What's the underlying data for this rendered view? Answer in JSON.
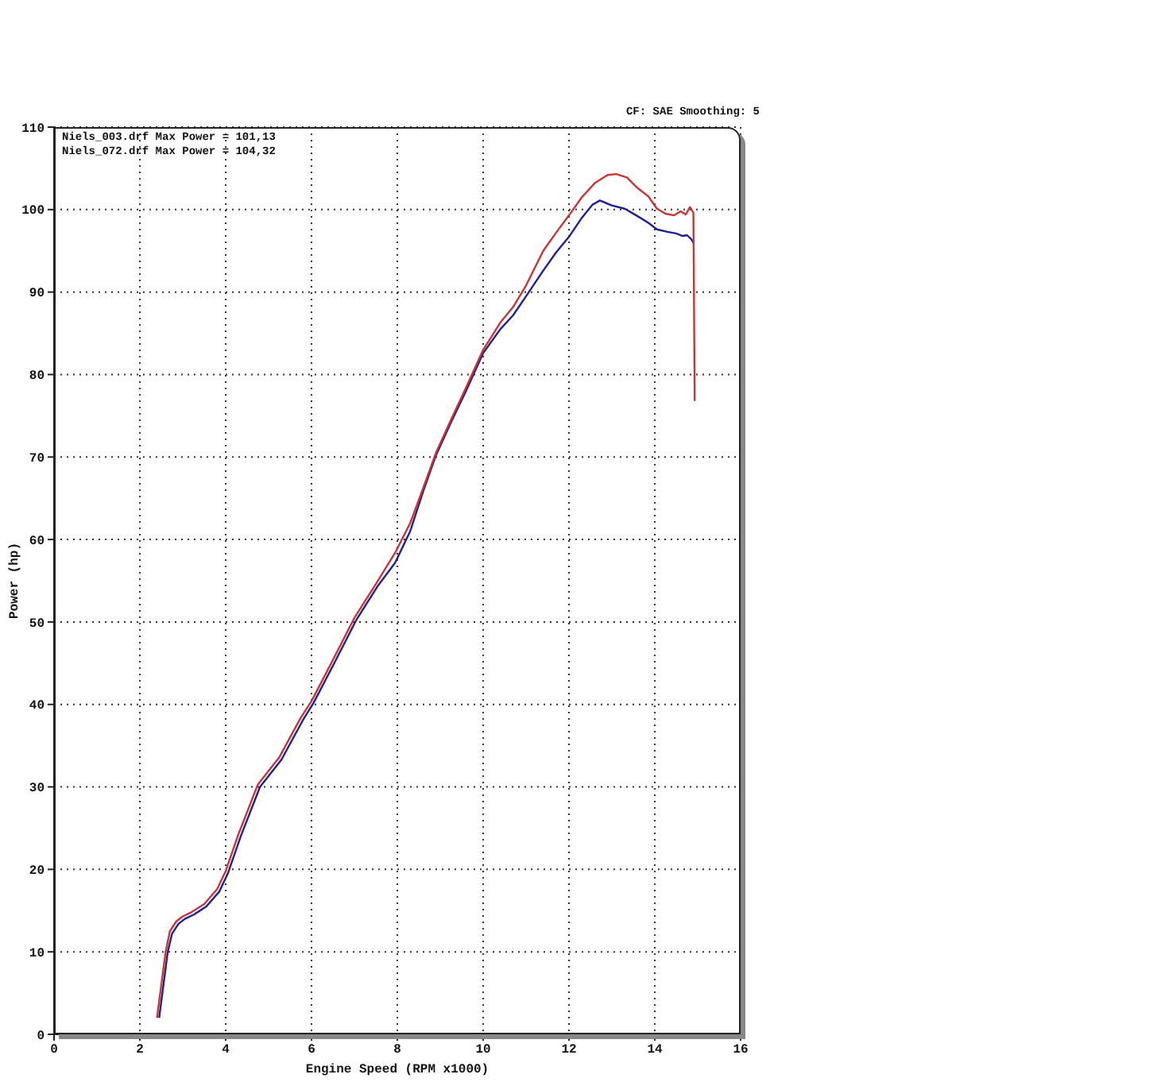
{
  "chart_data": {
    "type": "line",
    "xlabel": "Engine Speed (RPM x1000)",
    "ylabel": "Power (hp)",
    "annotations": [
      "Niels_003.drf Max Power = 101,13",
      "Niels_072.drf Max Power = 104,32",
      "CF: SAE Smoothing: 5"
    ],
    "xlim": [
      0,
      16
    ],
    "xticks": [
      0,
      2,
      4,
      6,
      8,
      10,
      12,
      14,
      16
    ],
    "ylim": [
      0,
      110
    ],
    "yticks": [
      0,
      10,
      20,
      30,
      40,
      50,
      60,
      70,
      80,
      90,
      100,
      110
    ],
    "grid": true,
    "series": [
      {
        "color": "#1f1f99",
        "x": [
          2.45,
          2.55,
          2.65,
          2.75,
          2.9,
          3.05,
          3.25,
          3.55,
          3.85,
          4.05,
          4.35,
          4.8,
          5.3,
          5.8,
          6.05,
          6.55,
          7.05,
          7.55,
          7.95,
          8.3,
          8.6,
          8.9,
          9.25,
          9.6,
          10.0,
          10.4,
          10.7,
          11.0,
          11.4,
          11.7,
          12.0,
          12.3,
          12.55,
          12.72,
          13.0,
          13.3,
          13.6,
          13.85,
          14.05,
          14.3,
          14.5,
          14.65,
          14.75,
          14.85,
          14.91
        ],
        "values": [
          2,
          6,
          10,
          12.2,
          13.4,
          14.0,
          14.5,
          15.5,
          17.3,
          19.5,
          24,
          30,
          33.3,
          38.1,
          40.2,
          45.2,
          50.3,
          54.4,
          57.2,
          61,
          65.8,
          70.2,
          74.2,
          78,
          82.6,
          85.5,
          87.2,
          89.5,
          92.6,
          94.8,
          96.7,
          99,
          100.6,
          101.1,
          100.5,
          100.1,
          99.2,
          98.4,
          97.6,
          97.3,
          97.1,
          96.8,
          96.9,
          96.4,
          95.9
        ]
      },
      {
        "color": "#cc3333",
        "x": [
          2.4,
          2.5,
          2.6,
          2.7,
          2.85,
          3.0,
          3.2,
          3.5,
          3.8,
          4.0,
          4.3,
          4.75,
          5.25,
          5.75,
          6.0,
          6.5,
          7.0,
          7.5,
          7.95,
          8.3,
          8.6,
          8.9,
          9.25,
          9.6,
          10.0,
          10.4,
          10.7,
          11.0,
          11.4,
          11.7,
          12.0,
          12.3,
          12.6,
          12.9,
          13.1,
          13.35,
          13.6,
          13.85,
          14.05,
          14.25,
          14.45,
          14.6,
          14.72,
          14.82,
          14.9,
          14.93
        ],
        "values": [
          2,
          6,
          10,
          12.5,
          13.7,
          14.3,
          14.8,
          15.8,
          17.6,
          19.8,
          24.3,
          30.3,
          33.6,
          38.4,
          40.4,
          45.4,
          50.5,
          54.6,
          58.4,
          62,
          66.2,
          70.5,
          74.5,
          78.4,
          83,
          86.3,
          88.2,
          90.8,
          95,
          97.2,
          99.3,
          101.5,
          103.2,
          104.2,
          104.3,
          103.9,
          102.6,
          101.6,
          100.1,
          99.5,
          99.3,
          99.8,
          99.4,
          100.3,
          99.6,
          76.8
        ]
      }
    ]
  }
}
